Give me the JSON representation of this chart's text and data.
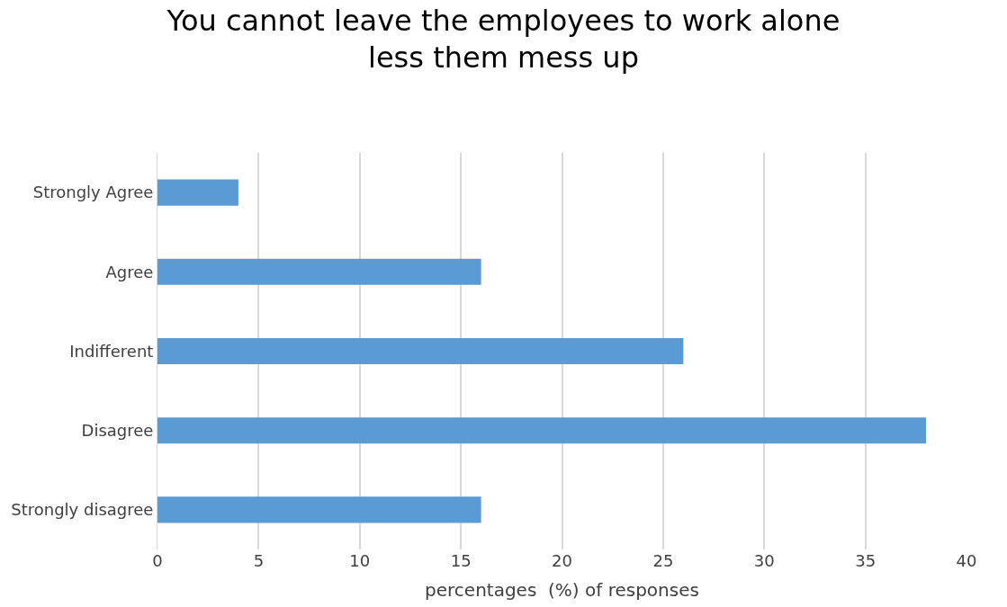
{
  "chart_data": {
    "type": "bar",
    "orientation": "horizontal",
    "title": "You cannot leave the employees to work alone\nless them mess up",
    "xlabel": "percentages  (%) of responses",
    "categories": [
      "Strongly Agree",
      "Agree",
      "Indifferent",
      "Disagree",
      "Strongly disagree"
    ],
    "values": [
      4,
      16,
      26,
      38,
      16
    ],
    "color": "#5b9bd5",
    "xlim": [
      0,
      40
    ],
    "xticks": [
      0,
      5,
      10,
      15,
      20,
      25,
      30,
      35,
      40
    ],
    "grid": "x",
    "legend": false
  }
}
